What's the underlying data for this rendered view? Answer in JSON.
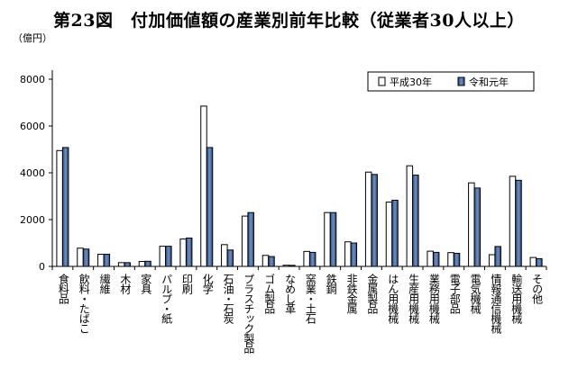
{
  "title": "第23図　付加価値額の産業別前年比較（従業者30人以上）",
  "chart_data": {
    "type": "bar",
    "y_unit": "（億円）",
    "ylim": [
      0,
      8000
    ],
    "yticks": [
      0,
      2000,
      4000,
      6000,
      8000
    ],
    "categories": [
      "食料品",
      "飲料・たばこ",
      "繊維",
      "木材",
      "家具",
      "パルプ・紙",
      "印刷",
      "化学",
      "石油・石炭",
      "プラスチック製品",
      "ゴム製品",
      "なめし革",
      "窯業・土石",
      "鉄鋼",
      "非鉄金属",
      "金属製品",
      "はん用機械",
      "生産用機械",
      "業務用機械",
      "電子部品",
      "電気機械",
      "情報通信機械",
      "輸送用機械",
      "その他"
    ],
    "series": [
      {
        "name": "平成30年",
        "color": "#ffffff",
        "values": [
          4950,
          780,
          520,
          160,
          210,
          860,
          1170,
          6850,
          930,
          2150,
          470,
          50,
          640,
          2300,
          1050,
          4030,
          2750,
          4300,
          650,
          590,
          3570,
          500,
          3850,
          380
        ]
      },
      {
        "name": "令和元年",
        "color": "#4a6fa5",
        "values": [
          5080,
          740,
          520,
          160,
          220,
          860,
          1210,
          5080,
          700,
          2300,
          420,
          45,
          600,
          2300,
          1000,
          3930,
          2830,
          3900,
          600,
          560,
          3350,
          850,
          3680,
          330
        ]
      }
    ],
    "legend_position": "top-right",
    "grid": false
  }
}
